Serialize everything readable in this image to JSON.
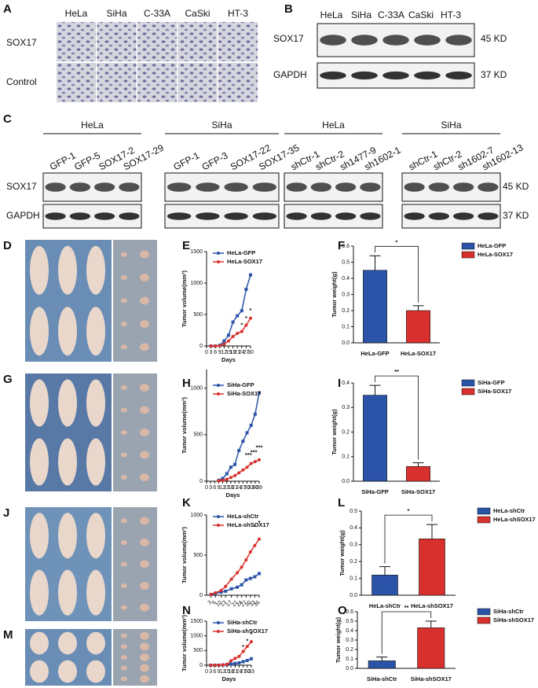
{
  "panel_a": {
    "label": "A",
    "columns": [
      "HeLa",
      "SiHa",
      "C-33A",
      "CaSki",
      "HT-3"
    ],
    "rows": [
      "SOX17",
      "Control"
    ]
  },
  "panel_b": {
    "label": "B",
    "columns": [
      "HeLa",
      "SiHa",
      "C-33A",
      "CaSki",
      "HT-3"
    ],
    "bands": [
      "SOX17",
      "GAPDH"
    ],
    "sizes": [
      "45 KD",
      "37 KD"
    ]
  },
  "panel_c": {
    "label": "C",
    "bands": [
      "SOX17",
      "GAPDH"
    ],
    "sizes": [
      "45 KD",
      "37 KD"
    ],
    "groups": [
      {
        "name": "HeLa",
        "lanes": [
          "GFP-1",
          "GFP-5",
          "SOX17-2",
          "SOX17-29"
        ]
      },
      {
        "name": "SiHa",
        "lanes": [
          "GFP-1",
          "GFP-3",
          "SOX17-22",
          "SOX17-35"
        ]
      },
      {
        "name": "HeLa",
        "lanes": [
          "shCtr-1",
          "shCtr-2",
          "sh1477-9",
          "sh1602-1"
        ]
      },
      {
        "name": "SiHa",
        "lanes": [
          "shCtr-1",
          "shCtr-2",
          "sh1602-7",
          "sh1602-13"
        ]
      }
    ]
  },
  "photo_panels": [
    "D",
    "G",
    "J",
    "M"
  ],
  "chart_data": [
    {
      "type": "line",
      "panel_label": "E",
      "ylabel": "Tumor volume(mm³)",
      "xlabel": "Days",
      "x": [
        3,
        6,
        9,
        12,
        15,
        18,
        21,
        24,
        27,
        30
      ],
      "xlim": [
        0,
        30
      ],
      "xticks": [
        0,
        3,
        6,
        9,
        12,
        15,
        18,
        21,
        24,
        27,
        30
      ],
      "ylim": [
        0,
        1500
      ],
      "yticks": [
        0,
        500,
        1000,
        1500
      ],
      "series": [
        {
          "name": "HeLa-GFP",
          "color": "#2b53a7",
          "values": [
            0,
            0,
            10,
            80,
            170,
            380,
            480,
            560,
            900,
            1130
          ]
        },
        {
          "name": "HeLa-SOX17",
          "color": "#d8302c",
          "values": [
            0,
            0,
            5,
            30,
            80,
            150,
            200,
            230,
            330,
            440
          ]
        }
      ],
      "annotations": [
        {
          "text": "*",
          "x": 24,
          "y": 330
        },
        {
          "text": "*",
          "x": 27,
          "y": 440
        },
        {
          "text": "*",
          "x": 30,
          "y": 560
        }
      ]
    },
    {
      "type": "bar",
      "panel_label": "F",
      "ylabel": "Tumor weight(g)",
      "categories": [
        "HeLa-GFP",
        "HeLa-SOX17"
      ],
      "values": [
        0.45,
        0.2
      ],
      "errors": [
        0.09,
        0.03
      ],
      "colors": [
        "#2b53a7",
        "#d8302c"
      ],
      "ylim": [
        0,
        0.6
      ],
      "yticks": [
        {
          "value": 0,
          "label": "0.0"
        },
        0.1,
        0.2,
        0.3,
        0.4,
        0.5,
        0.6
      ],
      "significance": "*"
    },
    {
      "type": "line",
      "panel_label": "H",
      "ylabel": "Tumor volume(mm³)",
      "xlabel": "Days",
      "x": [
        9,
        12,
        15,
        18,
        21,
        24,
        27,
        30,
        33,
        36,
        39
      ],
      "xlim": [
        0,
        39
      ],
      "xticks": [
        0,
        3,
        6,
        9,
        12,
        15,
        18,
        21,
        24,
        27,
        30,
        33,
        36,
        39
      ],
      "ylim": [
        0,
        1200
      ],
      "yticks": [
        0,
        500,
        1000
      ],
      "series": [
        {
          "name": "SiHa-GFP",
          "color": "#2b53a7",
          "values": [
            10,
            30,
            80,
            150,
            180,
            330,
            430,
            520,
            600,
            720,
            950
          ]
        },
        {
          "name": "SiHa-SOX17",
          "color": "#d8302c",
          "values": [
            5,
            10,
            20,
            40,
            60,
            90,
            120,
            150,
            190,
            210,
            230
          ]
        }
      ],
      "annotations": [
        {
          "text": "***",
          "x": 31,
          "y": 280
        },
        {
          "text": "***",
          "x": 35,
          "y": 310
        },
        {
          "text": "***",
          "x": 39,
          "y": 360
        }
      ]
    },
    {
      "type": "bar",
      "panel_label": "I",
      "ylabel": "Tumor weight(g)",
      "categories": [
        "SiHa-GFP",
        "SiHa-SOX17"
      ],
      "values": [
        0.35,
        0.06
      ],
      "errors": [
        0.04,
        0.015
      ],
      "colors": [
        "#2b53a7",
        "#d8302c"
      ],
      "ylim": [
        0,
        0.4
      ],
      "yticks": [
        {
          "value": 0,
          "label": "0.0"
        },
        0.1,
        0.2,
        0.3,
        0.4
      ],
      "significance": "**"
    },
    {
      "type": "line",
      "panel_label": "K",
      "ylabel": "Tumor volume(mm³)",
      "x": [
        3,
        6,
        10,
        13,
        17,
        21,
        24,
        27,
        30,
        33,
        36
      ],
      "xlim": [
        0,
        36
      ],
      "xticks": [
        3,
        6,
        10,
        13,
        17,
        21,
        24,
        27,
        30,
        33,
        36
      ],
      "ylim": [
        0,
        1000
      ],
      "yticks": [
        0,
        500,
        1000
      ],
      "series": [
        {
          "name": "HeLa-shCtr",
          "color": "#2b53a7",
          "values": [
            10,
            20,
            40,
            50,
            80,
            100,
            130,
            190,
            210,
            230,
            270
          ]
        },
        {
          "name": "HeLa-shSOX17",
          "color": "#d8302c",
          "values": [
            10,
            30,
            60,
            110,
            200,
            280,
            350,
            440,
            540,
            620,
            700
          ]
        }
      ],
      "annotations": [
        {
          "text": "*",
          "x": 33,
          "y": 850
        },
        {
          "text": "*",
          "x": 36,
          "y": 900
        }
      ]
    },
    {
      "type": "bar",
      "panel_label": "L",
      "ylabel": "Tumor weight(g)",
      "categories": [
        "HeLa-shCtr",
        "HeLa-shSOX17"
      ],
      "values": [
        0.12,
        0.335
      ],
      "errors": [
        0.05,
        0.085
      ],
      "colors": [
        "#2b53a7",
        "#d8302c"
      ],
      "ylim": [
        0,
        0.5
      ],
      "yticks": [
        {
          "value": 0,
          "label": "0.0"
        },
        0.1,
        0.2,
        0.3,
        0.4,
        0.5
      ],
      "significance": "*"
    },
    {
      "type": "line",
      "panel_label": "N",
      "ylabel": "Tumor volume(mm³)",
      "xlabel": "Days",
      "x": [
        3,
        6,
        9,
        12,
        15,
        18,
        21,
        24,
        27,
        30,
        33
      ],
      "xlim": [
        0,
        33
      ],
      "xticks": [
        0,
        3,
        6,
        9,
        12,
        15,
        18,
        21,
        24,
        27,
        30,
        33
      ],
      "ylim": [
        0,
        1500
      ],
      "yticks": [
        0,
        500,
        1000,
        1500
      ],
      "series": [
        {
          "name": "SiHa-shCtr",
          "color": "#2b53a7",
          "values": [
            0,
            0,
            0,
            10,
            20,
            40,
            60,
            80,
            120,
            160,
            220
          ]
        },
        {
          "name": "SiHa-shSOX17",
          "color": "#d8302c",
          "values": [
            0,
            0,
            0,
            10,
            30,
            150,
            230,
            300,
            470,
            640,
            800
          ]
        }
      ],
      "annotations": [
        {
          "text": "*",
          "x": 27,
          "y": 620
        },
        {
          "text": "*",
          "x": 30,
          "y": 820
        },
        {
          "text": "*",
          "x": 33,
          "y": 1050
        }
      ]
    },
    {
      "type": "bar",
      "panel_label": "O",
      "ylabel": "Tumor weight(g)",
      "categories": [
        "SiHa-shCtr",
        "SiHa-shSOX17"
      ],
      "values": [
        0.08,
        0.43
      ],
      "errors": [
        0.04,
        0.07
      ],
      "colors": [
        "#2b53a7",
        "#d8302c"
      ],
      "ylim": [
        0,
        0.6
      ],
      "yticks": [
        {
          "value": 0,
          "label": "0.0"
        },
        0.1,
        0.2,
        0.3,
        0.4,
        0.5,
        0.6
      ],
      "significance": "**"
    }
  ]
}
